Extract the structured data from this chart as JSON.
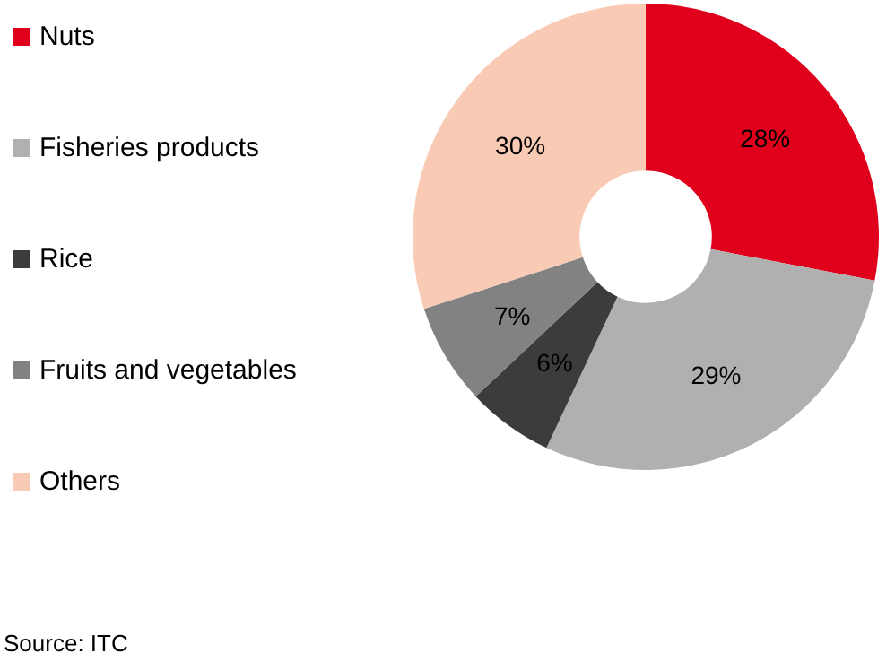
{
  "chart_data": {
    "type": "donut",
    "categories": [
      "Nuts",
      "Fisheries products",
      "Rice",
      "Fruits and vegetables",
      "Others"
    ],
    "values": [
      28,
      29,
      6,
      7,
      30
    ],
    "value_labels": [
      "28%",
      "29%",
      "6%",
      "7%",
      "30%"
    ],
    "colors": [
      "#e0001b",
      "#b0b0b0",
      "#3c3c3c",
      "#828282",
      "#f9cbb5"
    ],
    "legend": "left",
    "annotations": [
      "Source: ITC"
    ]
  }
}
